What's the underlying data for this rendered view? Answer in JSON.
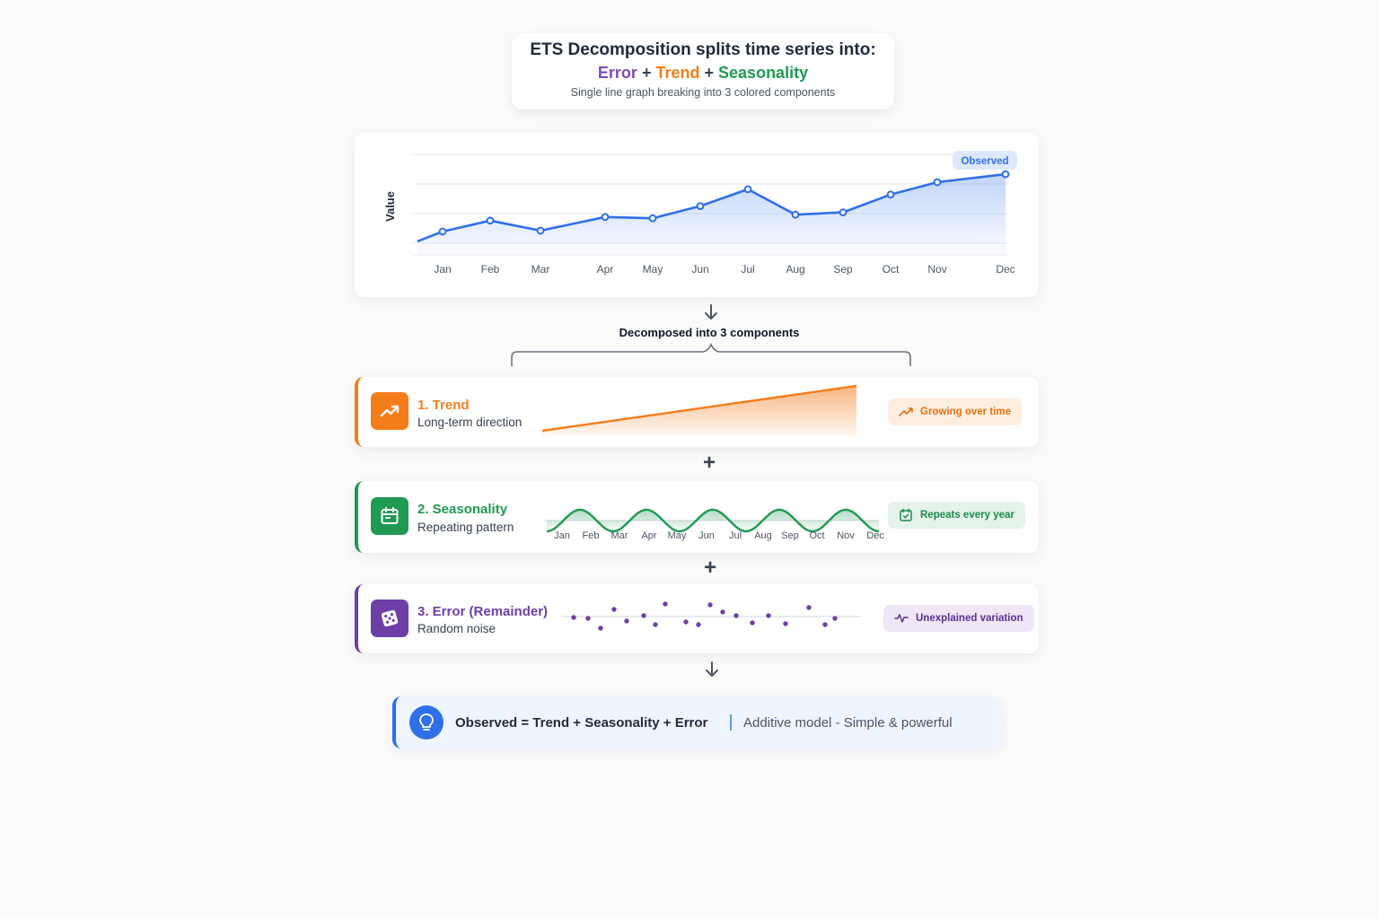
{
  "header": {
    "title": "ETS Decomposition splits time series into:",
    "error_word": "Error",
    "plus1": "+",
    "trend_word": "Trend",
    "plus2": "+",
    "seasonality_word": "Seasonality",
    "subtitle": "Single line graph breaking into 3 colored components"
  },
  "observed_chart": {
    "ylabel": "Value",
    "badge": "Observed",
    "line_color": "#2f6fe8"
  },
  "chart_data": {
    "type": "line",
    "categories": [
      "Jan",
      "Feb",
      "Mar",
      "Apr",
      "May",
      "Jun",
      "Jul",
      "Aug",
      "Sep",
      "Oct",
      "Nov",
      "Dec"
    ],
    "values": [
      7.9,
      11.6,
      8.2,
      12.8,
      12.4,
      16.5,
      22.2,
      13.6,
      14.4,
      20.4,
      24.6,
      27.3
    ],
    "ylim": [
      0,
      34
    ],
    "ylabel": "Value",
    "grid": true
  },
  "decomposition": {
    "label": "Decomposed into 3 components"
  },
  "components": {
    "trend": {
      "title": "1. Trend",
      "subtitle": "Long-term direction",
      "badge": "Growing over time",
      "color": "#f57c1a",
      "icon": "trending-up-icon"
    },
    "seasonality": {
      "title": "2. Seasonality",
      "subtitle": "Repeating pattern",
      "badge": "Repeats every year",
      "color": "#1f9a52",
      "icon": "calendar-icon",
      "months": [
        "Jan",
        "Feb",
        "Mar",
        "Apr",
        "May",
        "Jun",
        "Jul",
        "Aug",
        "Sep",
        "Oct",
        "Nov",
        "Dec"
      ]
    },
    "error": {
      "title": "3. Error (Remainder)",
      "subtitle": "Random noise",
      "badge": "Unexplained variation",
      "color": "#6d3fa6",
      "icon": "dice-icon"
    }
  },
  "plus_sign": "+",
  "formula": {
    "equation": "Observed = Trend + Seasonality + Error",
    "note": "Additive model - Simple & powerful",
    "icon": "lightbulb-icon"
  }
}
